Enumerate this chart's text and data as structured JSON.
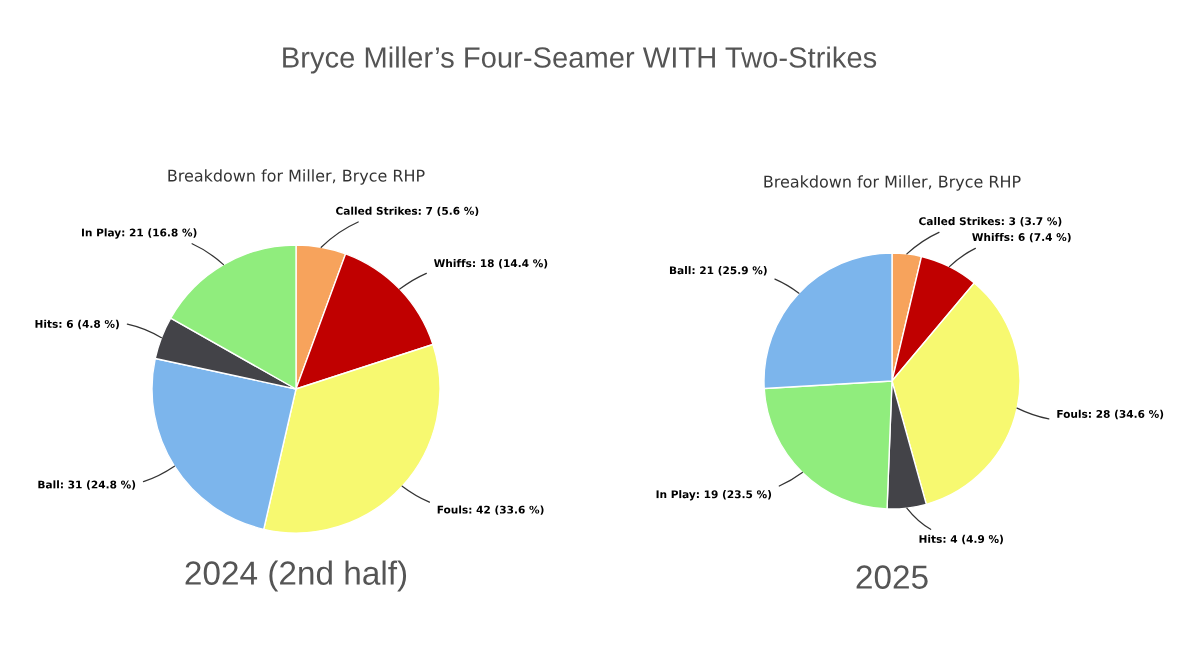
{
  "chart_data": [
    {
      "type": "pie",
      "title": "Bryce Miller’s Four-Seamer WITH Two-Strikes",
      "subtitle": "Breakdown for Miller, Bryce RHP",
      "categories": [
        "Called Strikes",
        "Whiffs",
        "Fouls",
        "Ball",
        "Hits",
        "In Play"
      ],
      "values": [
        7,
        18,
        42,
        31,
        6,
        21
      ],
      "colors": [
        "#f7a35c",
        "#c00000",
        "#f7f970",
        "#7cb5ec",
        "#434348",
        "#90ed7d"
      ],
      "value_labels": [
        "7 (5.6 %)",
        "18 (14.4 %)",
        "42 (33.6 %)",
        "31 (24.8 %)",
        "6 (4.8 %)",
        "21 (16.8 %)"
      ],
      "annotations": [
        "2024 (2nd half)"
      ]
    },
    {
      "type": "pie",
      "subtitle": "Breakdown for Miller, Bryce RHP",
      "categories": [
        "Called Strikes",
        "Whiffs",
        "Fouls",
        "Hits",
        "In Play",
        "Ball"
      ],
      "values": [
        3,
        6,
        28,
        4,
        19,
        21
      ],
      "colors": [
        "#f7a35c",
        "#c00000",
        "#f7f970",
        "#434348",
        "#90ed7d",
        "#7cb5ec"
      ],
      "value_labels": [
        "3 (3.7 %)",
        "6 (7.4 %)",
        "28 (34.6 %)",
        "4 (4.9 %)",
        "19 (23.5 %)",
        "21 (25.9 %)"
      ],
      "annotations": [
        "2025"
      ]
    }
  ]
}
